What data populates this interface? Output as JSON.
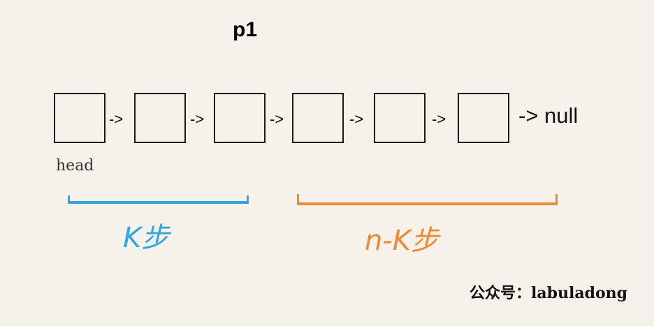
{
  "pointer_label": "p1",
  "nodes": [
    "",
    "",
    "",
    "",
    "",
    ""
  ],
  "arrow": "->",
  "tail": "-> null",
  "head_label": "head",
  "left_segment_label": "K步",
  "right_segment_label": "n-K步",
  "watermark": "公众号：labuladong",
  "colors": {
    "left_segment": "#2ea6e6",
    "right_segment": "#ed8a32",
    "background": "#f6f2ea"
  }
}
